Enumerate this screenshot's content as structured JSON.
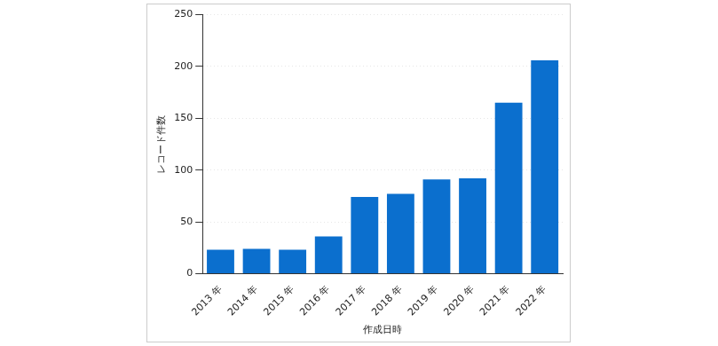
{
  "chart_data": {
    "type": "bar",
    "categories": [
      "2013 年",
      "2014 年",
      "2015 年",
      "2016 年",
      "2017 年",
      "2018 年",
      "2019 年",
      "2020 年",
      "2021 年",
      "2022 年"
    ],
    "values": [
      23,
      24,
      23,
      36,
      74,
      77,
      91,
      92,
      165,
      206
    ],
    "color": "#0b6fce",
    "x_label": "作成日時",
    "y_label": "レコード件数",
    "ylim": [
      0,
      250
    ],
    "yticks": [
      0,
      50,
      100,
      150,
      200,
      250
    ],
    "grid": true
  }
}
